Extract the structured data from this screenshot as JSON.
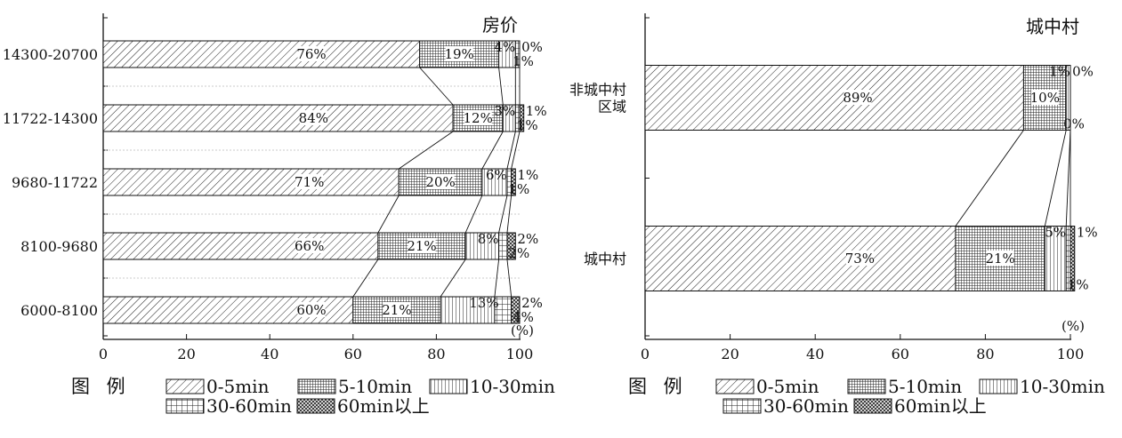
{
  "legend": {
    "title": "图 例",
    "items": [
      {
        "label": "0-5min",
        "pattern": "diag"
      },
      {
        "label": "5-10min",
        "pattern": "grid"
      },
      {
        "label": "10-30min",
        "pattern": "vert"
      },
      {
        "label": "30-60min",
        "pattern": "cross"
      },
      {
        "label": "60min以上",
        "pattern": "crosshatch"
      }
    ]
  },
  "chart_data": [
    {
      "type": "bar",
      "orientation": "horizontal",
      "stacked": true,
      "title": "房价",
      "unit": "(%)",
      "xlim": [
        0,
        100
      ],
      "xticks": [
        0,
        20,
        40,
        60,
        80,
        100
      ],
      "categories": [
        "14300-20700",
        "11722-14300",
        "9680-11722",
        "8100-9680",
        "6000-8100"
      ],
      "series": [
        {
          "name": "0-5min",
          "values": [
            76,
            84,
            71,
            66,
            60
          ]
        },
        {
          "name": "5-10min",
          "values": [
            19,
            12,
            20,
            21,
            21
          ]
        },
        {
          "name": "10-30min",
          "values": [
            4,
            3,
            6,
            8,
            13
          ]
        },
        {
          "name": "30-60min",
          "values": [
            1,
            1,
            1,
            2,
            4
          ]
        },
        {
          "name": "60min以上",
          "values": [
            0,
            1,
            1,
            2,
            2
          ]
        }
      ]
    },
    {
      "type": "bar",
      "orientation": "horizontal",
      "stacked": true,
      "title": "城中村",
      "unit": "(%)",
      "xlim": [
        0,
        100
      ],
      "xticks": [
        0,
        20,
        40,
        60,
        80,
        100
      ],
      "categories": [
        "非城中村区域",
        "城中村"
      ],
      "series": [
        {
          "name": "0-5min",
          "values": [
            89,
            73
          ]
        },
        {
          "name": "5-10min",
          "values": [
            10,
            21
          ]
        },
        {
          "name": "10-30min",
          "values": [
            1,
            5
          ]
        },
        {
          "name": "30-60min",
          "values": [
            0,
            1
          ]
        },
        {
          "name": "60min以上",
          "values": [
            0,
            1
          ]
        }
      ]
    }
  ]
}
